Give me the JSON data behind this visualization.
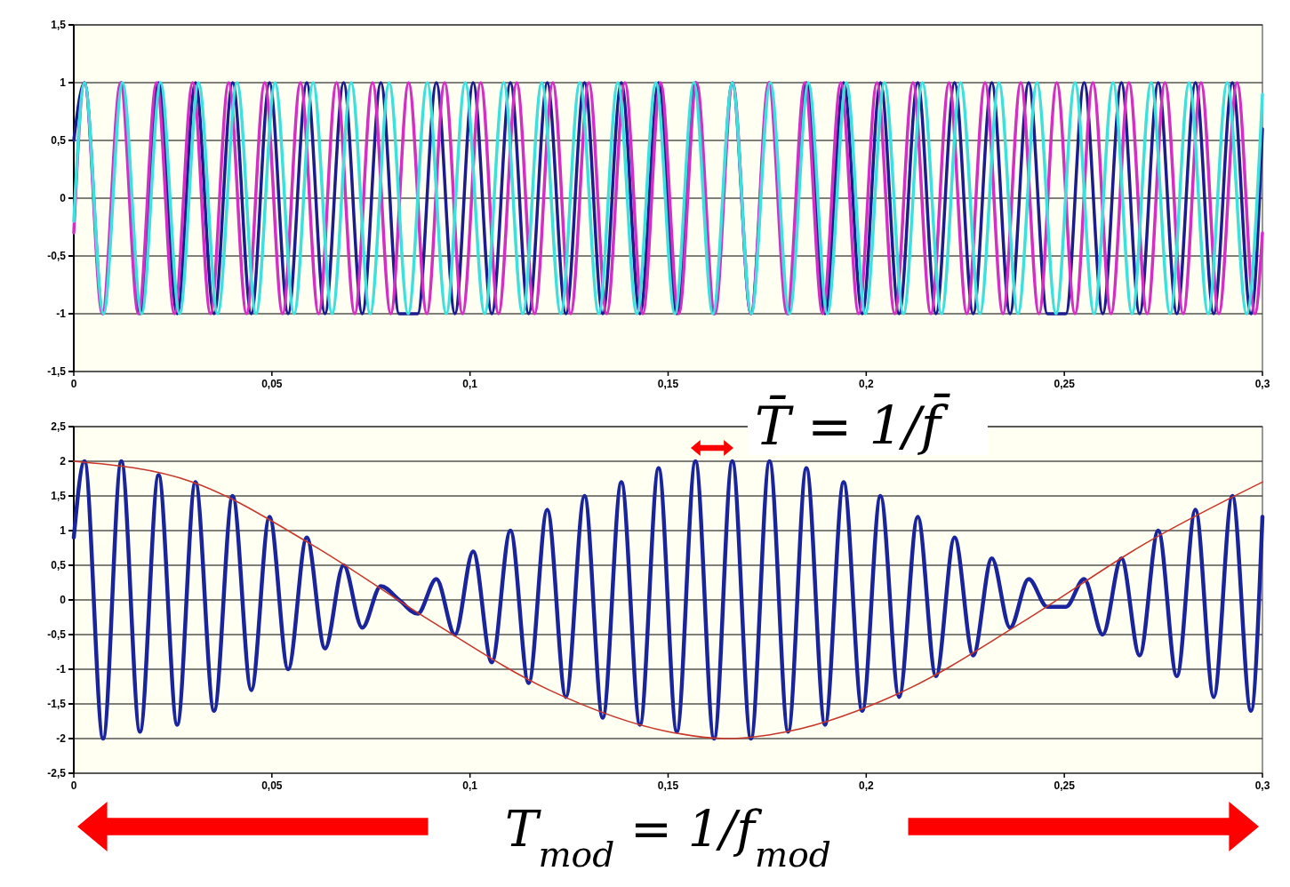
{
  "chart_data": [
    {
      "type": "line",
      "xlim": [
        0,
        0.3
      ],
      "ylim": [
        -1.5,
        1.5
      ],
      "xticks": [
        0,
        {
          "value": 0.05,
          "label": "0,05"
        },
        {
          "value": 0.1,
          "label": "0,1"
        },
        {
          "value": 0.15,
          "label": "0,15"
        },
        {
          "value": 0.2,
          "label": "0,2"
        },
        {
          "value": 0.25,
          "label": "0,25"
        },
        {
          "value": 0.3,
          "label": "0,3"
        }
      ],
      "yticks": [
        {
          "value": -1.5,
          "label": "-1,5"
        },
        -1,
        {
          "value": -0.5,
          "label": "-0,5"
        },
        0,
        {
          "value": 0.5,
          "label": "0,5"
        },
        1,
        {
          "value": 1.5,
          "label": "1,5"
        }
      ],
      "grid": "y",
      "series": [
        {
          "color": "#1c1c8f",
          "x": [
            0,
            0.0027,
            0.0074,
            0.012,
            0.0167,
            0.0214,
            0.0261,
            0.0307,
            0.0354,
            0.0401,
            0.0448,
            0.0494,
            0.0541,
            0.0588,
            0.0634,
            0.0681,
            0.0728,
            0.0775,
            0.0821,
            0.0868,
            0.0915,
            0.0962,
            0.1008,
            0.1055,
            0.1102,
            0.1148,
            0.1195,
            0.1242,
            0.1289,
            0.1335,
            0.1382,
            0.1429,
            0.1476,
            0.1522,
            0.1569,
            0.1616,
            0.1662,
            0.1709,
            0.1756,
            0.1803,
            0.1849,
            0.1896,
            0.1943,
            0.199,
            0.2036,
            0.2083,
            0.213,
            0.2176,
            0.2223,
            0.227,
            0.2317,
            0.2363,
            0.241,
            0.2457,
            0.2504,
            0.255,
            0.2597,
            0.2644,
            0.269,
            0.2737,
            0.2784,
            0.2831,
            0.2877,
            0.2924,
            0.2971,
            0.3
          ],
          "values": [
            0.5,
            1,
            -1,
            1,
            -1,
            1,
            -1,
            1,
            -1,
            1,
            -1,
            1,
            -1,
            1,
            -1,
            1,
            -1,
            1,
            -1,
            -1,
            1,
            -1,
            1,
            -1,
            1,
            -1,
            1,
            -1,
            1,
            -1,
            1,
            -1,
            1,
            -1,
            1,
            -1,
            1,
            -1,
            1,
            -1,
            1,
            -1,
            1,
            -1,
            1,
            -1,
            1,
            -1,
            1,
            -1,
            1,
            -1,
            1,
            -1,
            -1,
            1,
            -1,
            1,
            -1,
            1,
            -1,
            1,
            -1,
            1,
            -1,
            0.6
          ]
        },
        {
          "color": "#d42fc4",
          "x": [
            0,
            0.0027,
            0.0072,
            0.0118,
            0.0163,
            0.0209,
            0.0254,
            0.03,
            0.0345,
            0.0391,
            0.0436,
            0.0482,
            0.0527,
            0.0572,
            0.0618,
            0.0663,
            0.0709,
            0.0754,
            0.08,
            0.0845,
            0.0891,
            0.0936,
            0.0981,
            0.1027,
            0.1072,
            0.1118,
            0.1163,
            0.1209,
            0.1254,
            0.13,
            0.1345,
            0.1391,
            0.1436,
            0.1481,
            0.1527,
            0.1572,
            0.1618,
            0.1663,
            0.1709,
            0.1754,
            0.18,
            0.1845,
            0.189,
            0.1936,
            0.1981,
            0.2027,
            0.2072,
            0.2118,
            0.2163,
            0.2209,
            0.2254,
            0.23,
            0.2345,
            0.239,
            0.2436,
            0.2481,
            0.2527,
            0.2572,
            0.2618,
            0.2663,
            0.2709,
            0.2754,
            0.28,
            0.2845,
            0.289,
            0.2936,
            0.2981,
            0.3
          ],
          "values": [
            -0.3,
            1,
            -1,
            1,
            -1,
            1,
            -1,
            1,
            -1,
            1,
            -1,
            1,
            -1,
            1,
            -1,
            1,
            -1,
            1,
            -1,
            1,
            -1,
            1,
            -1,
            1,
            -1,
            1,
            -1,
            1,
            -1,
            1,
            -1,
            1,
            -1,
            1,
            -1,
            1,
            -1,
            1,
            -1,
            1,
            -1,
            1,
            -1,
            1,
            -1,
            1,
            -1,
            1,
            -1,
            1,
            -1,
            1,
            -1,
            1,
            -1,
            1,
            -1,
            1,
            -1,
            1,
            -1,
            1,
            -1,
            1,
            -1,
            1,
            -1,
            -0.3
          ]
        },
        {
          "color": "#3ee0de",
          "x": [
            0,
            0.0027,
            0.0075,
            0.0123,
            0.0171,
            0.0219,
            0.0267,
            0.0315,
            0.0363,
            0.0412,
            0.046,
            0.0508,
            0.0556,
            0.0604,
            0.0652,
            0.07,
            0.0748,
            0.0796,
            0.0844,
            0.0892,
            0.094,
            0.0988,
            0.1037,
            0.1085,
            0.1133,
            0.1181,
            0.1229,
            0.1277,
            0.1325,
            0.1373,
            0.1421,
            0.1469,
            0.1517,
            0.1565,
            0.1613,
            0.1662,
            0.171,
            0.1758,
            0.1806,
            0.1854,
            0.1902,
            0.195,
            0.1998,
            0.2046,
            0.2094,
            0.2142,
            0.219,
            0.2238,
            0.2287,
            0.2335,
            0.2383,
            0.2431,
            0.2479,
            0.2527,
            0.2575,
            0.2623,
            0.2671,
            0.2719,
            0.2767,
            0.2815,
            0.2863,
            0.2911,
            0.296,
            0.3
          ],
          "values": [
            -0.2,
            1,
            -1,
            1,
            -1,
            1,
            -1,
            1,
            -1,
            1,
            -1,
            1,
            -1,
            1,
            -1,
            1,
            -1,
            1,
            -1,
            1,
            -1,
            1,
            -1,
            1,
            -1,
            1,
            -1,
            1,
            -1,
            1,
            -1,
            1,
            -1,
            1,
            -1,
            1,
            -1,
            1,
            -1,
            1,
            -1,
            1,
            -1,
            1,
            -1,
            1,
            -1,
            1,
            -1,
            1,
            -1,
            1,
            -1,
            1,
            -1,
            1,
            -1,
            1,
            -1,
            1,
            -1,
            1,
            -1,
            0.9
          ]
        }
      ]
    },
    {
      "type": "line",
      "xlim": [
        0,
        0.3
      ],
      "ylim": [
        -2.5,
        2.5
      ],
      "xticks": [
        0,
        {
          "value": 0.05,
          "label": "0,05"
        },
        {
          "value": 0.1,
          "label": "0,1"
        },
        {
          "value": 0.15,
          "label": "0,15"
        },
        {
          "value": 0.2,
          "label": "0,2"
        },
        {
          "value": 0.25,
          "label": "0,25"
        },
        {
          "value": 0.3,
          "label": "0,3"
        }
      ],
      "yticks": [
        {
          "value": -2.5,
          "label": "-2,5"
        },
        -2,
        {
          "value": -1.5,
          "label": "-1,5"
        },
        -1,
        {
          "value": -0.5,
          "label": "-0,5"
        },
        0,
        {
          "value": 0.5,
          "label": "0,5"
        },
        1,
        {
          "value": 1.5,
          "label": "1,5"
        },
        2,
        {
          "value": 2.5,
          "label": "2,5"
        }
      ],
      "grid": "y",
      "annotations": [
        "T̄ = 1/f̄",
        "T$_{mod}$ = 1/f$_{mod}$"
      ],
      "series": [
        {
          "color": "#1a249c",
          "x": [
            0,
            0.0027,
            0.0074,
            0.012,
            0.0167,
            0.0214,
            0.0261,
            0.0307,
            0.0354,
            0.0401,
            0.0448,
            0.0494,
            0.0541,
            0.0588,
            0.0634,
            0.0681,
            0.0728,
            0.0775,
            0.0821,
            0.0868,
            0.0915,
            0.0962,
            0.1008,
            0.1055,
            0.1102,
            0.1148,
            0.1195,
            0.1242,
            0.1289,
            0.1335,
            0.1382,
            0.1429,
            0.1476,
            0.1522,
            0.1569,
            0.1616,
            0.1662,
            0.1709,
            0.1756,
            0.1803,
            0.1849,
            0.1896,
            0.1943,
            0.199,
            0.2036,
            0.2083,
            0.213,
            0.2176,
            0.2223,
            0.227,
            0.2317,
            0.2363,
            0.241,
            0.2457,
            0.2504,
            0.255,
            0.2597,
            0.2644,
            0.269,
            0.2737,
            0.2784,
            0.2831,
            0.2877,
            0.2924,
            0.2971,
            0.3
          ],
          "values": [
            0.9,
            2.0,
            -2.0,
            2.0,
            -1.9,
            1.8,
            -1.8,
            1.7,
            -1.6,
            1.5,
            -1.3,
            1.2,
            -1.0,
            0.9,
            -0.7,
            0.5,
            -0.4,
            0.2,
            0.0,
            -0.2,
            0.3,
            -0.5,
            0.7,
            -0.9,
            1.0,
            -1.2,
            1.3,
            -1.4,
            1.5,
            -1.7,
            1.7,
            -1.8,
            1.9,
            -1.9,
            2.0,
            -2.0,
            2.0,
            -2.0,
            2.0,
            -1.9,
            1.9,
            -1.8,
            1.7,
            -1.6,
            1.5,
            -1.4,
            1.2,
            -1.1,
            0.9,
            -0.8,
            0.6,
            -0.4,
            0.3,
            -0.1,
            -0.1,
            0.3,
            -0.5,
            0.6,
            -0.8,
            1.0,
            -1.1,
            1.3,
            -1.4,
            1.5,
            -1.6,
            1.2
          ]
        },
        {
          "color": "#c8372a",
          "x": [
            0,
            0.03,
            0.06,
            0.09,
            0.12,
            0.15,
            0.165,
            0.18,
            0.21,
            0.24,
            0.27,
            0.3
          ],
          "values": [
            2.0,
            1.7,
            0.8,
            -0.3,
            -1.3,
            -1.9,
            -2.0,
            -1.9,
            -1.3,
            -0.3,
            0.8,
            1.7
          ]
        }
      ]
    }
  ]
}
